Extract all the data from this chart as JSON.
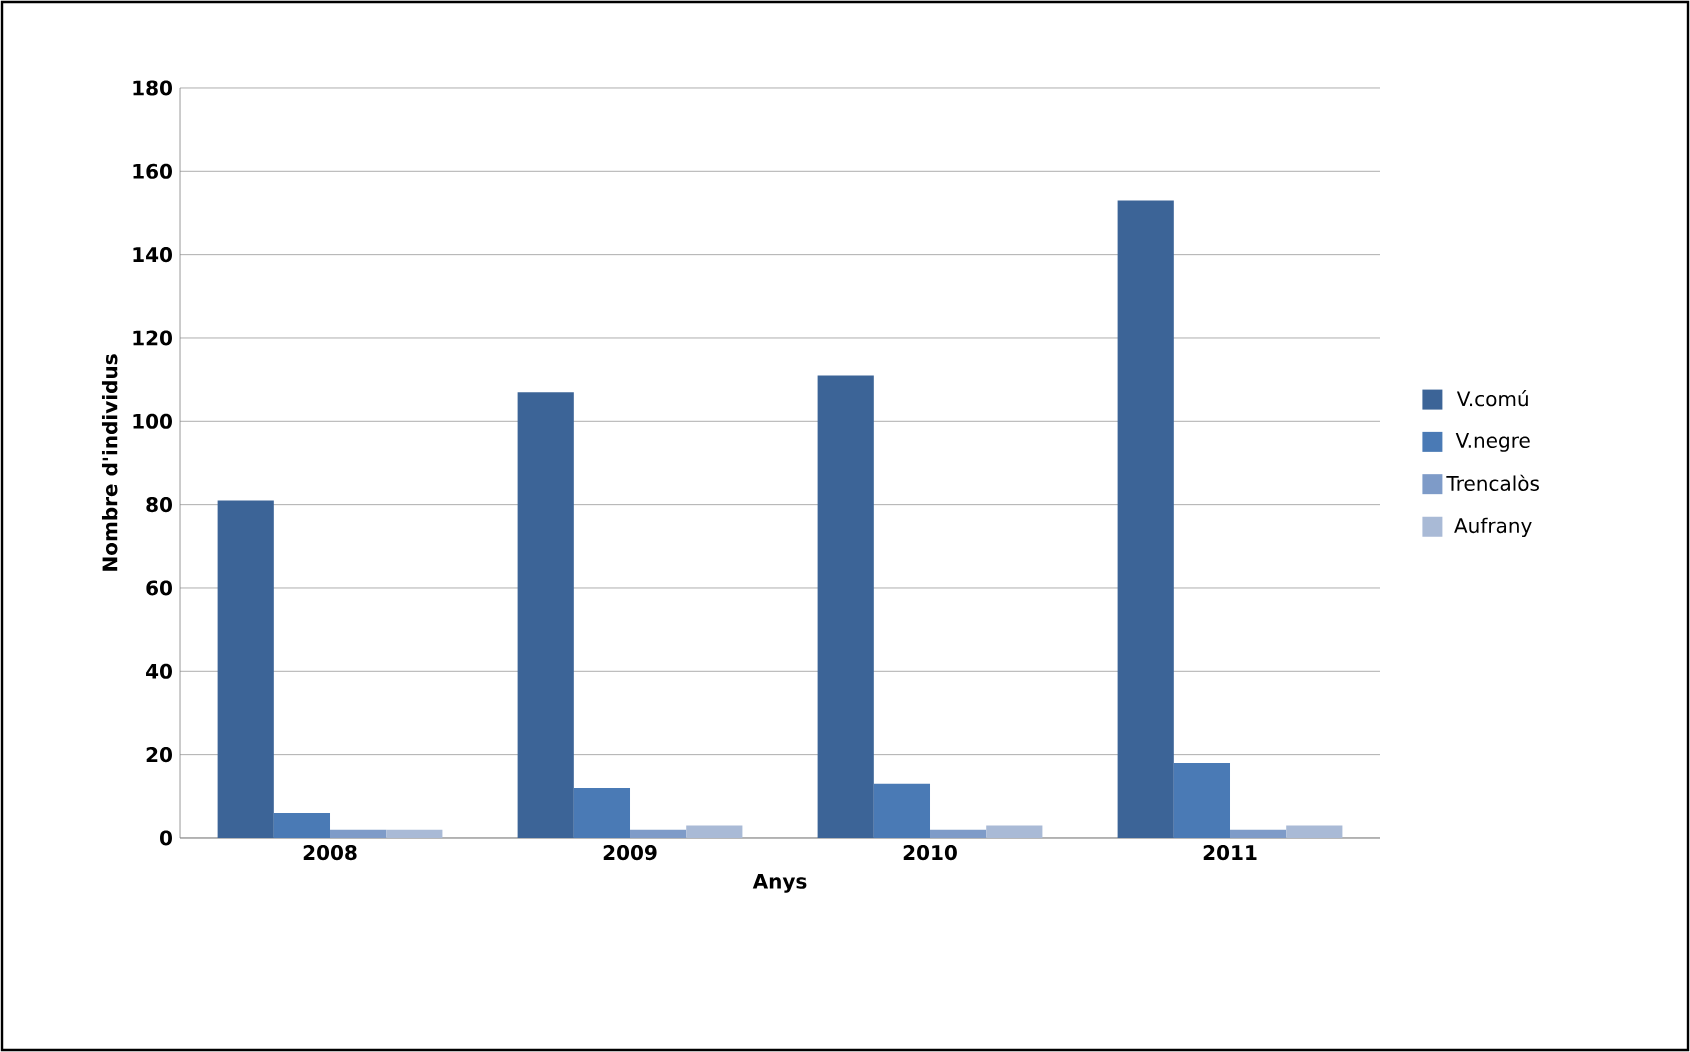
{
  "chart_data": {
    "type": "bar",
    "xlabel": "Anys",
    "ylabel": "Nombre d'individus",
    "categories": [
      "2008",
      "2009",
      "2010",
      "2011"
    ],
    "series": [
      {
        "name": "V.comú",
        "color": "#3c6497",
        "values": [
          81,
          107,
          111,
          153
        ]
      },
      {
        "name": "V.negre",
        "color": "#4a7ab5",
        "values": [
          6,
          12,
          13,
          18
        ]
      },
      {
        "name": "Trencalòs",
        "color": "#7e9bc8",
        "values": [
          2,
          2,
          2,
          2
        ]
      },
      {
        "name": "Aufrany",
        "color": "#a9bad6",
        "values": [
          2,
          3,
          3,
          3
        ]
      }
    ],
    "ylim": [
      0,
      180
    ],
    "yticks": [
      0,
      20,
      40,
      60,
      80,
      100,
      120,
      140,
      160,
      180
    ],
    "grid": "y",
    "legend": "right"
  }
}
